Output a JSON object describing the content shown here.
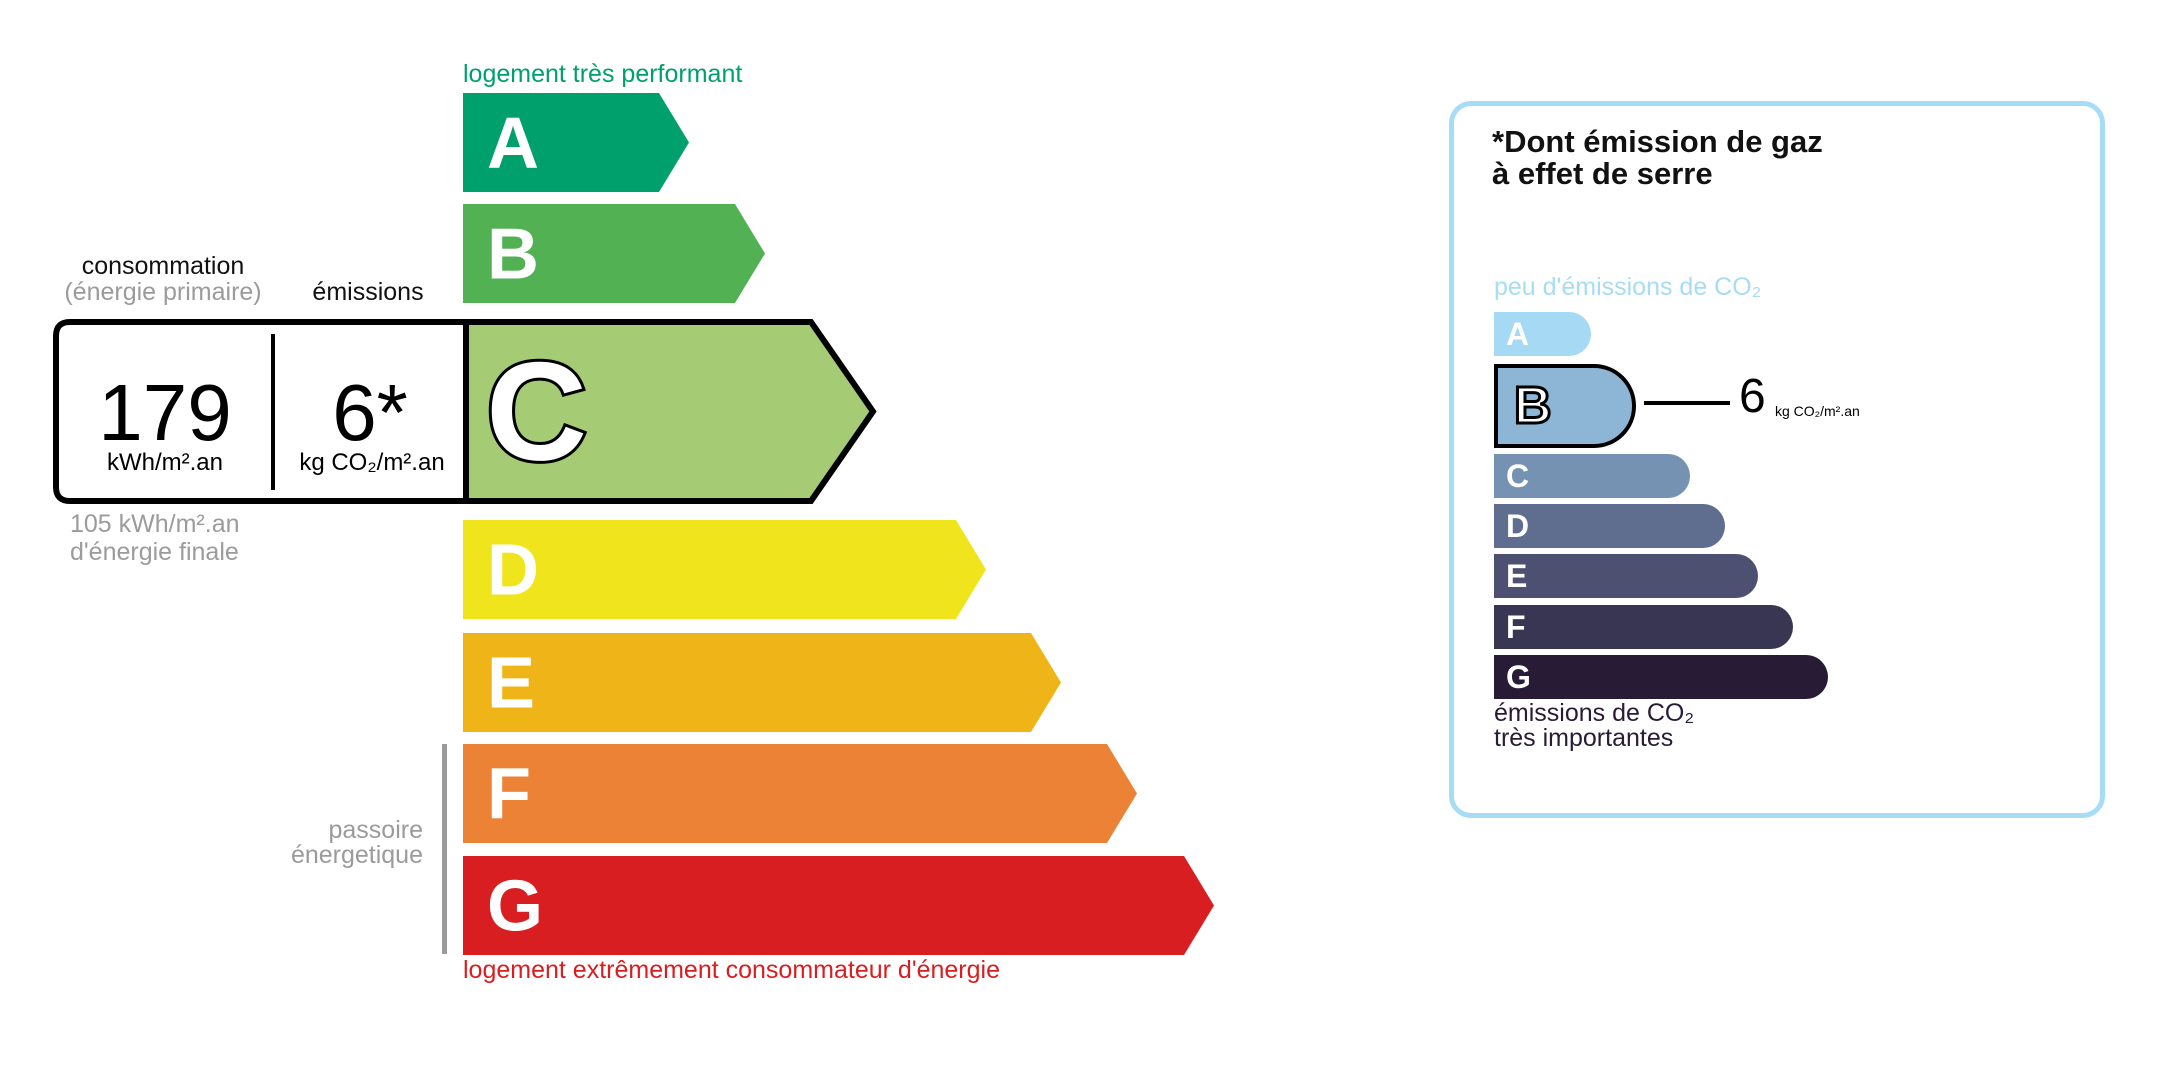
{
  "energy": {
    "top_label": "logement très performant",
    "bottom_label": "logement extrêmement consommateur d'énergie",
    "top_label_color": "#00a06d",
    "bottom_label_color": "#d81e20",
    "active_grade": "C",
    "grades": [
      {
        "letter": "A",
        "color": "#00a06d"
      },
      {
        "letter": "B",
        "color": "#52b153"
      },
      {
        "letter": "C",
        "color": "#a5cc74"
      },
      {
        "letter": "D",
        "color": "#f0e51c"
      },
      {
        "letter": "E",
        "color": "#efb418"
      },
      {
        "letter": "F",
        "color": "#eb8235"
      },
      {
        "letter": "G",
        "color": "#d81e20"
      }
    ],
    "consumption_header": "consommation",
    "consumption_subheader": "(énergie primaire)",
    "emissions_header": "émissions",
    "consumption_value": "179",
    "consumption_unit": "kWh/m².an",
    "emissions_value": "6*",
    "emissions_unit": "kg CO₂/m².an",
    "final_energy_value": "105 kWh/m².an",
    "final_energy_label": "d'énergie finale",
    "passoire_line1": "passoire",
    "passoire_line2": "énergetique"
  },
  "ges": {
    "title_line1": "*Dont émission de gaz",
    "title_line2": "à effet de serre",
    "top_label": "peu d'émissions de CO₂",
    "bottom_label_line1": "émissions de CO₂",
    "bottom_label_line2": "très importantes",
    "active_grade": "B",
    "value": "6",
    "unit": "kg CO₂/m².an",
    "border_color": "#a6dcf5",
    "grades": [
      {
        "letter": "A",
        "color": "#a6daf4"
      },
      {
        "letter": "B",
        "color": "#8db5d6"
      },
      {
        "letter": "C",
        "color": "#7592b3"
      },
      {
        "letter": "D",
        "color": "#5f6d8f"
      },
      {
        "letter": "E",
        "color": "#4d5070"
      },
      {
        "letter": "F",
        "color": "#393653"
      },
      {
        "letter": "G",
        "color": "#281b35"
      }
    ]
  }
}
